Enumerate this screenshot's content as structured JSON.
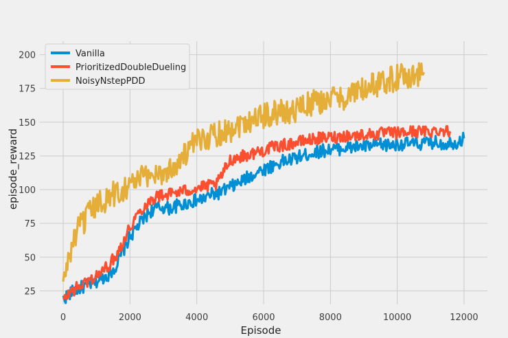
{
  "chart_data": {
    "type": "line",
    "xlabel": "Episode",
    "ylabel": "episode_reward",
    "xlim": [
      -700,
      12700
    ],
    "ylim": [
      15,
      210
    ],
    "xticks": [
      0,
      2000,
      4000,
      6000,
      8000,
      10000,
      12000
    ],
    "yticks": [
      25,
      50,
      75,
      100,
      125,
      150,
      175,
      200
    ],
    "grid": true,
    "legend_position": "top-left",
    "series": [
      {
        "name": "Vanilla",
        "color": "#008fd5",
        "x": [
          0,
          200,
          400,
          600,
          800,
          1000,
          1200,
          1400,
          1600,
          1800,
          2000,
          2200,
          2400,
          2600,
          2800,
          3000,
          3200,
          3400,
          3600,
          3800,
          4000,
          4200,
          4400,
          4600,
          4800,
          5000,
          5200,
          5400,
          5600,
          5800,
          6000,
          6200,
          6400,
          6600,
          6800,
          7000,
          7200,
          7400,
          7600,
          7800,
          8000,
          8200,
          8400,
          8600,
          8800,
          9000,
          9200,
          9400,
          9600,
          9800,
          10000,
          10200,
          10400,
          10600,
          10800,
          11000,
          11200,
          11400,
          11600,
          11800,
          12000
        ],
        "values": [
          19,
          23,
          26,
          28,
          30,
          32,
          35,
          38,
          44,
          55,
          65,
          72,
          78,
          84,
          86,
          87,
          86,
          88,
          89,
          91,
          92,
          93,
          96,
          97,
          99,
          102,
          104,
          107,
          110,
          113,
          115,
          117,
          119,
          121,
          122,
          124,
          125,
          127,
          128,
          129,
          130,
          130,
          131,
          131,
          132,
          132,
          132,
          133,
          133,
          133,
          134,
          134,
          134,
          134,
          134,
          135,
          135,
          134,
          135,
          135,
          138
        ]
      },
      {
        "name": "PrioritizedDoubleDueling",
        "color": "#fc4f30",
        "x": [
          0,
          200,
          400,
          600,
          800,
          1000,
          1200,
          1400,
          1600,
          1800,
          2000,
          2200,
          2400,
          2600,
          2800,
          3000,
          3200,
          3400,
          3600,
          3800,
          4000,
          4200,
          4400,
          4600,
          4800,
          5000,
          5200,
          5400,
          5600,
          5800,
          6000,
          6200,
          6400,
          6600,
          6800,
          7000,
          7200,
          7400,
          7600,
          7800,
          8000,
          8200,
          8400,
          8600,
          8800,
          9000,
          9200,
          9400,
          9600,
          9800,
          10000,
          10200,
          10400,
          10600,
          10800,
          11000,
          11200,
          11400,
          11600
        ],
        "values": [
          17,
          24,
          27,
          30,
          33,
          36,
          40,
          45,
          52,
          62,
          72,
          81,
          87,
          92,
          95,
          96,
          97,
          98,
          99,
          100,
          101,
          102,
          103,
          104,
          113,
          122,
          124,
          125,
          126,
          128,
          129,
          131,
          132,
          133,
          134,
          135,
          136,
          137,
          138,
          138,
          139,
          139,
          140,
          140,
          140,
          141,
          141,
          141,
          142,
          142,
          142,
          142,
          143,
          143,
          143,
          143,
          144,
          144,
          143
        ]
      },
      {
        "name": "NoisyNstepPDD",
        "color": "#e5ae38",
        "x": [
          0,
          100,
          200,
          300,
          400,
          600,
          800,
          1000,
          1200,
          1400,
          1600,
          1800,
          2000,
          2200,
          2400,
          2600,
          2800,
          3000,
          3200,
          3400,
          3600,
          3800,
          4000,
          4200,
          4400,
          4600,
          4800,
          5000,
          5200,
          5400,
          5600,
          5800,
          6000,
          6200,
          6400,
          6600,
          6800,
          7000,
          7200,
          7400,
          7600,
          7800,
          8000,
          8200,
          8400,
          8600,
          8800,
          9000,
          9200,
          9400,
          9600,
          9800,
          10000,
          10200,
          10400,
          10600,
          10800
        ],
        "values": [
          30,
          42,
          52,
          62,
          68,
          76,
          82,
          88,
          92,
          95,
          98,
          101,
          104,
          107,
          109,
          111,
          113,
          112,
          115,
          120,
          125,
          130,
          135,
          138,
          140,
          142,
          143,
          145,
          148,
          150,
          152,
          154,
          155,
          156,
          157,
          158,
          158,
          160,
          162,
          163,
          165,
          166,
          167,
          168,
          169,
          170,
          172,
          174,
          176,
          178,
          180,
          182,
          183,
          184,
          185,
          185,
          187
        ]
      }
    ]
  }
}
